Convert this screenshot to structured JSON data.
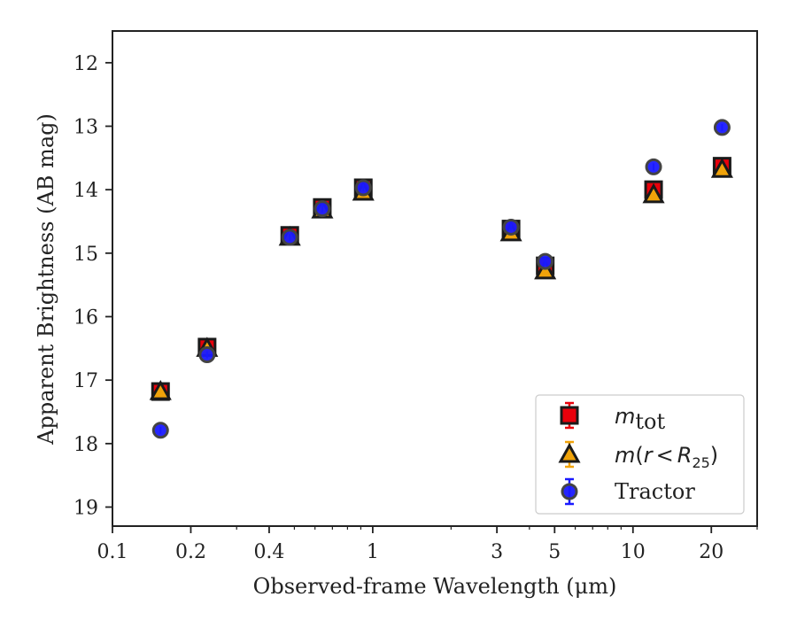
{
  "chart_data": {
    "type": "scatter",
    "xlabel": "Observed-frame Wavelength (μm)",
    "ylabel": "Apparent Brightness (AB mag)",
    "x_scale": "log",
    "xlim": [
      0.1,
      30
    ],
    "ylim": [
      19.3,
      11.5
    ],
    "y_inverted": true,
    "x_ticks": [
      {
        "value": 0.1,
        "label": "0.1"
      },
      {
        "value": 0.2,
        "label": "0.2"
      },
      {
        "value": 0.4,
        "label": "0.4"
      },
      {
        "value": 1,
        "label": "1"
      },
      {
        "value": 3,
        "label": "3"
      },
      {
        "value": 5,
        "label": "5"
      },
      {
        "value": 10,
        "label": "10"
      },
      {
        "value": 20,
        "label": "20"
      }
    ],
    "y_ticks": [
      12,
      13,
      14,
      15,
      16,
      17,
      18,
      19
    ],
    "legend_position": "bottom-right",
    "series": [
      {
        "key": "mtot",
        "legend_base": "m",
        "legend_sub": "tot",
        "marker": "square",
        "fill_color": "#e8000b",
        "edge_color": "#1a1a1a",
        "errbar_color": "#e8000b",
        "points": [
          {
            "x": 0.153,
            "y": 17.18
          },
          {
            "x": 0.231,
            "y": 16.48
          },
          {
            "x": 0.48,
            "y": 14.72
          },
          {
            "x": 0.64,
            "y": 14.28
          },
          {
            "x": 0.92,
            "y": 13.97
          },
          {
            "x": 3.4,
            "y": 14.62
          },
          {
            "x": 4.6,
            "y": 15.2
          },
          {
            "x": 12.0,
            "y": 14.0
          },
          {
            "x": 22.0,
            "y": 13.63
          }
        ]
      },
      {
        "key": "mr25",
        "legend_base": "m",
        "legend_r": "r",
        "legend_lt": "<",
        "legend_R": "R",
        "legend_sub": "25",
        "marker": "triangle",
        "fill_color": "#f0a30a",
        "edge_color": "#1a1a1a",
        "errbar_color": "#f0a30a",
        "points": [
          {
            "x": 0.153,
            "y": 17.18
          },
          {
            "x": 0.231,
            "y": 16.5
          },
          {
            "x": 0.48,
            "y": 14.75
          },
          {
            "x": 0.64,
            "y": 14.32
          },
          {
            "x": 0.92,
            "y": 14.04
          },
          {
            "x": 3.4,
            "y": 14.68
          },
          {
            "x": 4.6,
            "y": 15.28
          },
          {
            "x": 12.0,
            "y": 14.08
          },
          {
            "x": 22.0,
            "y": 13.68
          }
        ]
      },
      {
        "key": "tractor",
        "name": "Tractor",
        "marker": "circle",
        "fill_color": "#1a1aff",
        "edge_color": "#444444",
        "errbar_color": "#1a1aff",
        "points": [
          {
            "x": 0.153,
            "y": 17.79
          },
          {
            "x": 0.231,
            "y": 16.6
          },
          {
            "x": 0.48,
            "y": 14.75
          },
          {
            "x": 0.64,
            "y": 14.3
          },
          {
            "x": 0.92,
            "y": 13.97
          },
          {
            "x": 3.4,
            "y": 14.59
          },
          {
            "x": 4.6,
            "y": 15.13
          },
          {
            "x": 12.0,
            "y": 13.64
          },
          {
            "x": 22.0,
            "y": 13.02
          }
        ]
      }
    ]
  }
}
